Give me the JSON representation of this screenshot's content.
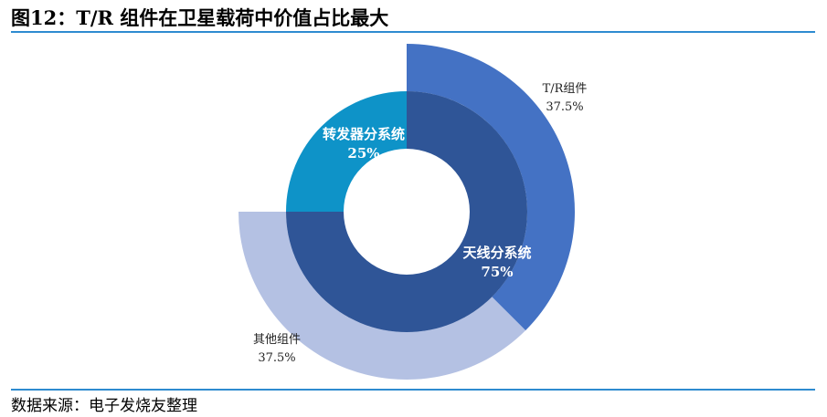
{
  "title": "图12：T/R 组件在卫星载荷中价值占比最大",
  "source": "数据来源：电子发烧友整理",
  "chart_data": {
    "type": "pie",
    "subtype": "nested-donut",
    "title": "图12：T/R 组件在卫星载荷中价值占比最大",
    "rings": [
      {
        "level": "inner",
        "slices": [
          {
            "label": "天线分系统",
            "value": 75,
            "display": "75%",
            "color": "#2f5597"
          },
          {
            "label": "转发器分系统",
            "value": 25,
            "display": "25%",
            "color": "#0e93c8"
          }
        ]
      },
      {
        "level": "outer",
        "slices": [
          {
            "label": "T/R组件",
            "value": 37.5,
            "display": "37.5%",
            "color": "#4472c4"
          },
          {
            "label": "其他组件",
            "value": 37.5,
            "display": "37.5%",
            "color": "#b4c1e3"
          }
        ]
      }
    ]
  }
}
